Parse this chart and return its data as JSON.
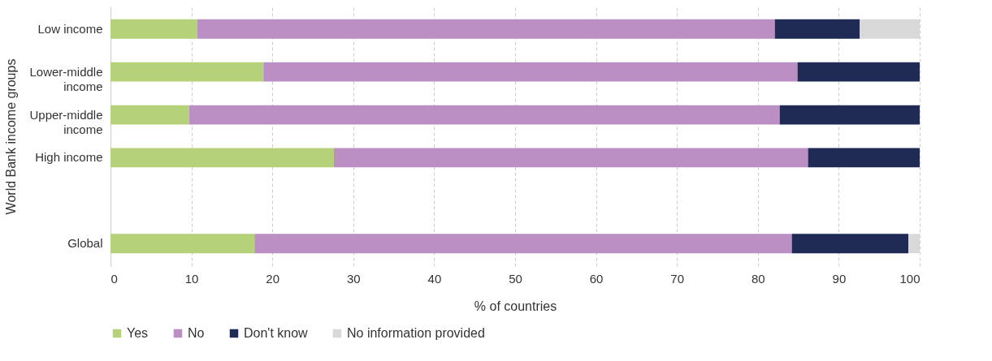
{
  "chart_data": {
    "type": "bar",
    "orientation": "horizontal",
    "stacked": true,
    "ylabel": "World Bank income groups",
    "xlabel": "% of countries",
    "categories": [
      "Low income",
      "Lower-middle income",
      "Upper-middle income",
      "High income",
      null,
      "Global"
    ],
    "series": [
      {
        "name": "Yes",
        "color": "#b5d17a",
        "values": [
          10.7,
          18.9,
          9.7,
          27.6,
          null,
          17.8
        ]
      },
      {
        "name": "No",
        "color": "#bb8ec4",
        "values": [
          71.4,
          66.0,
          73.0,
          58.6,
          null,
          66.4
        ]
      },
      {
        "name": "Don't know",
        "color": "#1f2a55",
        "values": [
          10.5,
          15.1,
          17.3,
          13.8,
          null,
          14.4
        ]
      },
      {
        "name": "No information provided",
        "color": "#d9d9d9",
        "values": [
          7.4,
          0,
          0,
          0,
          null,
          1.4
        ]
      }
    ],
    "xlim": [
      0,
      100
    ],
    "xticks": [
      0,
      10,
      20,
      30,
      40,
      50,
      60,
      70,
      80,
      90,
      100
    ],
    "grid": "x",
    "legend": "bottom"
  }
}
